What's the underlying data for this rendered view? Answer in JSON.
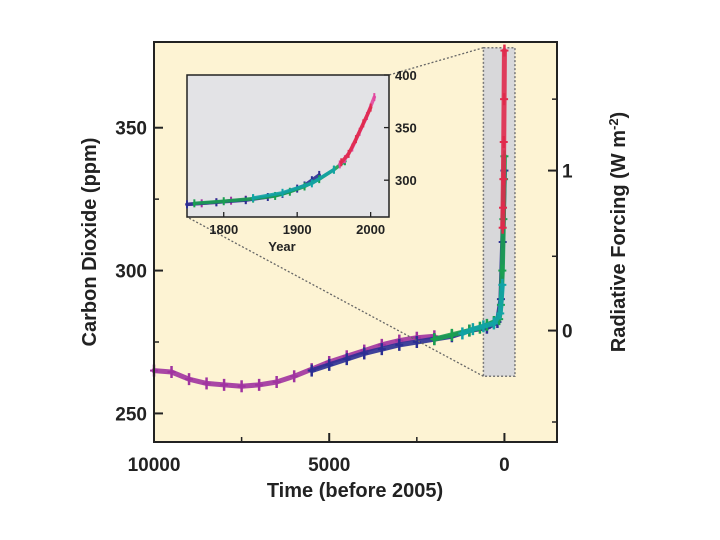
{
  "colors": {
    "background": "#fdf3d3",
    "inset_background": "#e3e3e6",
    "ice_core_a": "#a033a0",
    "ice_core_b": "#2b2f93",
    "ice_core_c": "#1aa050",
    "ice_core_d": "#12a3a6",
    "atmospheric": "#e02a4c",
    "atmospheric_b": "#e2479f"
  },
  "chart_data": [
    {
      "id": "main",
      "type": "scatter",
      "xlabel": "Time (before 2005)",
      "ylabel": "Carbon Dioxide (ppm)",
      "y2label_text": "Radiative Forcing (W m",
      "y2label_sup": "-2",
      "y2label_close": ")",
      "xlim": [
        10000,
        -1500
      ],
      "ylim": [
        240,
        380
      ],
      "x_ticks": [
        "10000",
        "5000",
        "0"
      ],
      "y_ticks": [
        "250",
        "300",
        "350"
      ],
      "y2_ticks": [
        "0",
        "1"
      ],
      "y2_tick_ppm": [
        279,
        335
      ],
      "highlight_box": {
        "x": [
          600,
          -300
        ],
        "y": [
          263,
          378
        ]
      },
      "series": [
        {
          "name": "ice core (purple)",
          "color_key": "ice_core_a",
          "x": [
            10000,
            9500,
            9000,
            8500,
            8000,
            7500,
            7000,
            6500,
            6000,
            5500,
            5000,
            4500,
            4000,
            3500,
            3000,
            2500,
            2000
          ],
          "y": [
            265,
            264.5,
            262,
            260.5,
            260,
            259.5,
            260,
            261,
            263,
            265.5,
            268,
            270,
            272,
            274,
            275.5,
            276.5,
            277
          ]
        },
        {
          "name": "ice core (blue)",
          "color_key": "ice_core_b",
          "x": [
            5500,
            5000,
            4500,
            4000,
            3500,
            3000,
            2500,
            2000,
            1500,
            1000,
            500,
            200,
            100,
            50,
            0
          ],
          "y": [
            265,
            267,
            269,
            271,
            272.5,
            274,
            275,
            276,
            277,
            279,
            280,
            282,
            290,
            310,
            335
          ]
        },
        {
          "name": "ice core (green)",
          "color_key": "ice_core_c",
          "x": [
            2000,
            1500,
            1000,
            700,
            500,
            300,
            150,
            100,
            60,
            30,
            10,
            0
          ],
          "y": [
            276,
            277.5,
            279,
            280,
            281,
            282,
            283,
            288,
            300,
            318,
            332,
            340
          ]
        },
        {
          "name": "ice core (cyan)",
          "color_key": "ice_core_d",
          "x": [
            1200,
            900,
            600,
            300,
            120,
            60
          ],
          "y": [
            278,
            279.5,
            280.5,
            281.5,
            285,
            295
          ]
        },
        {
          "name": "atmospheric",
          "color_key": "atmospheric",
          "x": [
            50,
            40,
            30,
            20,
            10,
            0
          ],
          "y": [
            315,
            322,
            332,
            345,
            360,
            377
          ]
        }
      ]
    },
    {
      "id": "inset",
      "type": "scatter",
      "xlabel": "Year",
      "xlim": [
        1750,
        2025
      ],
      "ylim": [
        265,
        400
      ],
      "x_ticks": [
        "1800",
        "1900",
        "2000"
      ],
      "y_ticks": [
        "300",
        "350",
        "400"
      ],
      "series": [
        {
          "name": "ice core (purple)",
          "color_key": "ice_core_a",
          "x": [
            1750,
            1770,
            1790,
            1810,
            1830
          ],
          "y": [
            277,
            278,
            279,
            280.5,
            281.5
          ]
        },
        {
          "name": "ice core (blue)",
          "color_key": "ice_core_b",
          "x": [
            1750,
            1790,
            1830,
            1860,
            1880,
            1900,
            1910,
            1920,
            1930
          ],
          "y": [
            277,
            279,
            281,
            284,
            287,
            292,
            295,
            300,
            305
          ]
        },
        {
          "name": "ice core (green)",
          "color_key": "ice_core_c",
          "x": [
            1760,
            1800,
            1840,
            1870,
            1890,
            1910,
            1930,
            1950,
            1965
          ],
          "y": [
            278,
            280,
            282.5,
            285,
            289,
            294,
            301,
            310,
            318
          ]
        },
        {
          "name": "ice core (cyan)",
          "color_key": "ice_core_d",
          "x": [
            1840,
            1880,
            1920,
            1950
          ],
          "y": [
            283,
            288,
            297,
            310
          ]
        },
        {
          "name": "atmospheric (pink)",
          "color_key": "atmospheric_b",
          "x": [
            1958,
            1965,
            1975,
            1985,
            1995,
            2005
          ],
          "y": [
            315,
            320,
            331,
            346,
            361,
            379
          ]
        },
        {
          "name": "atmospheric (red)",
          "color_key": "atmospheric",
          "x": [
            1960,
            1970,
            1980,
            1990,
            2000
          ],
          "y": [
            317,
            325,
            339,
            354,
            369
          ]
        }
      ]
    }
  ]
}
